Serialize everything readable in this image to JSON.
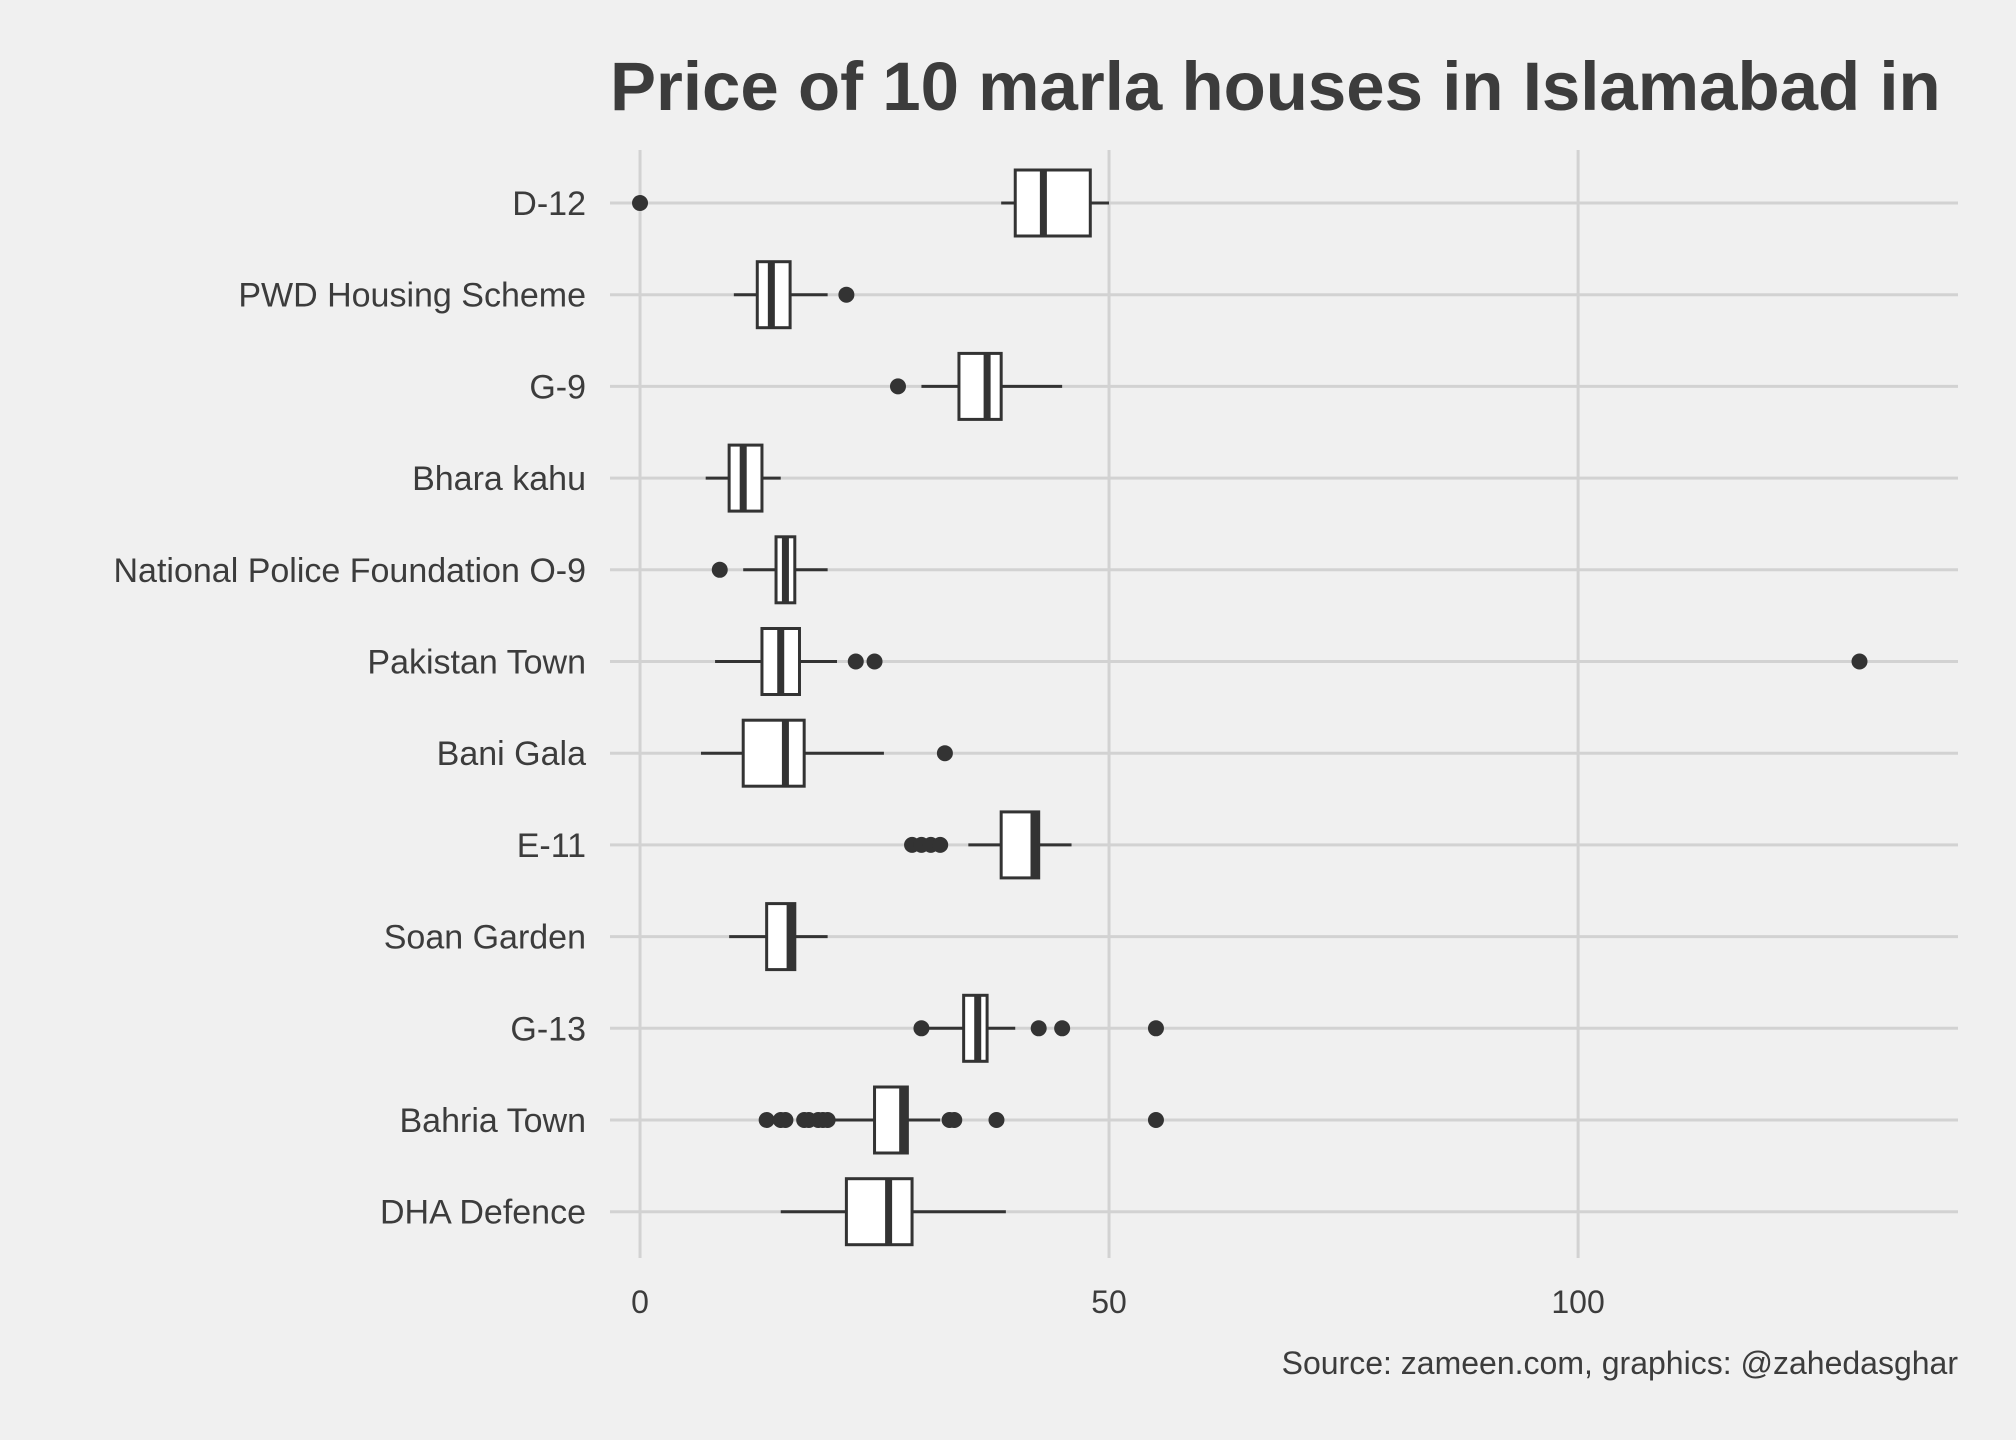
{
  "chart_data": {
    "type": "boxplot",
    "orientation": "horizontal",
    "title": "Price of 10 marla houses in Islamabad in",
    "caption": "Source: zameen.com, graphics: @zahedasghar",
    "xlabel": "",
    "ylabel": "",
    "xlim": [
      -3.2,
      140.5
    ],
    "xticks": [
      0,
      50,
      100
    ],
    "xtick_labels": [
      "0",
      "50",
      "100"
    ],
    "grid": true,
    "categories": [
      "D-12",
      "PWD Housing Scheme",
      "G-9",
      "Bhara kahu",
      "National Police Foundation O-9",
      "Pakistan Town",
      "Bani Gala",
      "E-11",
      "Soan Garden",
      "G-13",
      "Bahria Town",
      "DHA Defence"
    ],
    "boxes": [
      {
        "category": "D-12",
        "whisker_low": 38.5,
        "q1": 40,
        "median": 43,
        "q3": 48,
        "whisker_high": 50,
        "outliers": [
          0
        ]
      },
      {
        "category": "PWD Housing Scheme",
        "whisker_low": 10,
        "q1": 12.5,
        "median": 14,
        "q3": 16,
        "whisker_high": 20,
        "outliers": [
          22
        ]
      },
      {
        "category": "G-9",
        "whisker_low": 30,
        "q1": 34,
        "median": 37,
        "q3": 38.5,
        "whisker_high": 45,
        "outliers": [
          27.5
        ]
      },
      {
        "category": "Bhara kahu",
        "whisker_low": 7,
        "q1": 9.5,
        "median": 11,
        "q3": 13,
        "whisker_high": 15,
        "outliers": []
      },
      {
        "category": "National Police Foundation O-9",
        "whisker_low": 11,
        "q1": 14.5,
        "median": 15.5,
        "q3": 16.5,
        "whisker_high": 20,
        "outliers": [
          8.5
        ]
      },
      {
        "category": "Pakistan Town",
        "whisker_low": 8,
        "q1": 13,
        "median": 15,
        "q3": 17,
        "whisker_high": 21,
        "outliers": [
          23,
          25,
          130
        ]
      },
      {
        "category": "Bani Gala",
        "whisker_low": 6.5,
        "q1": 11,
        "median": 15.5,
        "q3": 17.5,
        "whisker_high": 26,
        "outliers": [
          32.5
        ]
      },
      {
        "category": "E-11",
        "whisker_low": 35,
        "q1": 38.5,
        "median": 42,
        "q3": 42.5,
        "whisker_high": 46,
        "outliers": [
          29,
          30,
          31,
          32
        ]
      },
      {
        "category": "Soan Garden",
        "whisker_low": 9.5,
        "q1": 13.5,
        "median": 16,
        "q3": 16.5,
        "whisker_high": 20,
        "outliers": []
      },
      {
        "category": "G-13",
        "whisker_low": 30,
        "q1": 34.5,
        "median": 36,
        "q3": 37,
        "whisker_high": 40,
        "outliers": [
          30,
          42.5,
          45,
          55
        ]
      },
      {
        "category": "Bahria Town",
        "whisker_low": 20,
        "q1": 25,
        "median": 28,
        "q3": 28.5,
        "whisker_high": 32,
        "outliers": [
          13.5,
          15,
          15.5,
          17.5,
          18,
          19,
          19.5,
          20,
          33,
          33.5,
          38,
          55
        ]
      },
      {
        "category": "DHA Defence",
        "whisker_low": 15,
        "q1": 22,
        "median": 26.5,
        "q3": 29,
        "whisker_high": 39,
        "outliers": []
      }
    ]
  }
}
